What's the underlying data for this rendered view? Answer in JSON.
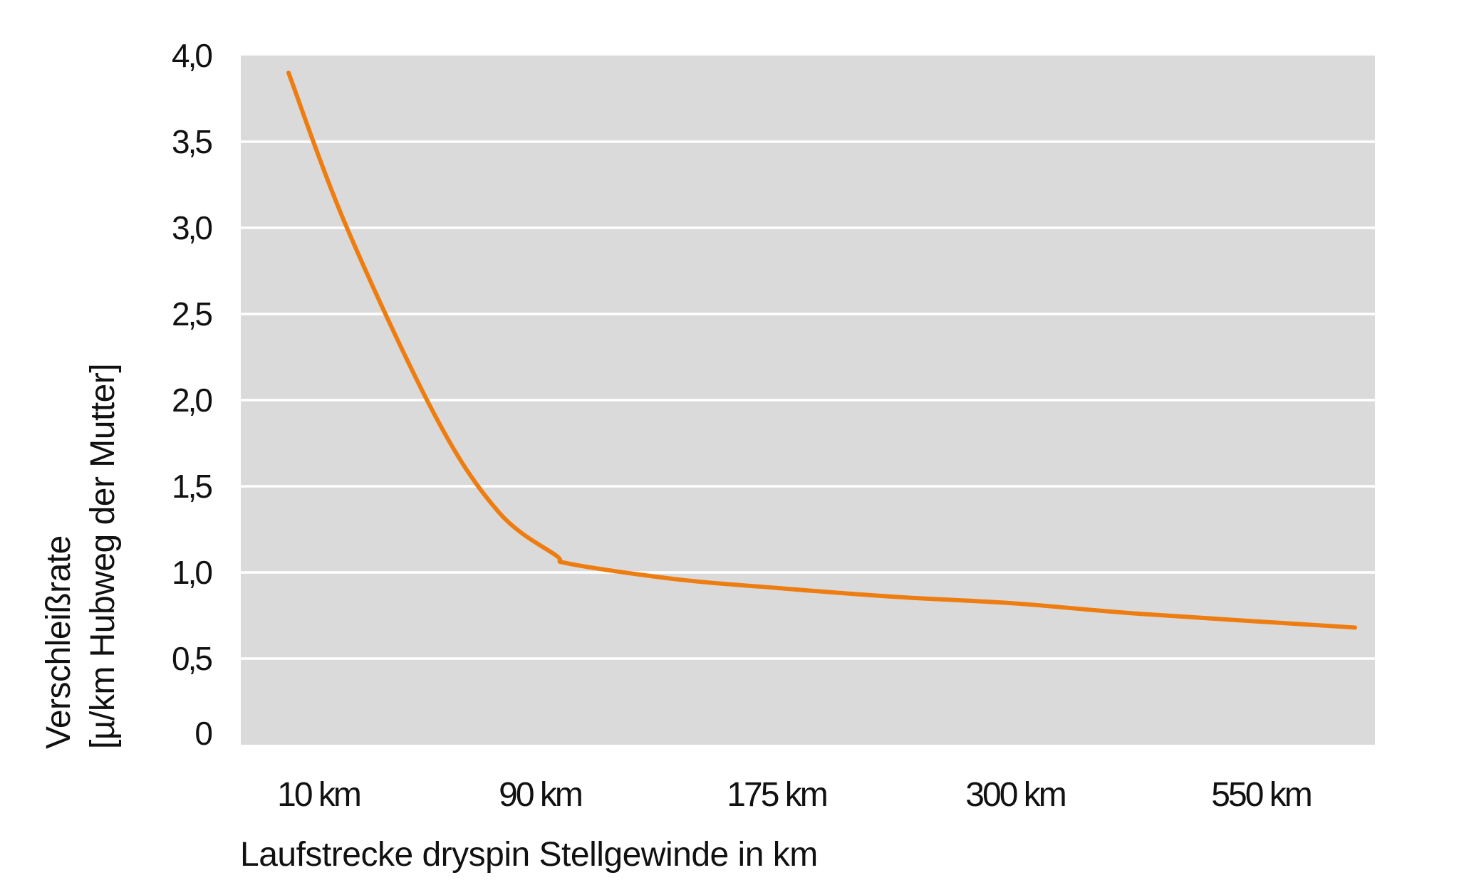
{
  "chart_data": {
    "type": "line",
    "title": "",
    "xlabel": "Laufstrecke dryspin Stellgewinde in km",
    "ylabel_line1": "Verschleißrate",
    "ylabel_line2": "[µ/km Hubweg der Mutter]",
    "categories": [
      "10 km",
      "90 km",
      "175 km",
      "300 km",
      "550 km"
    ],
    "y_ticks": [
      "0",
      "0,5",
      "1,0",
      "1,5",
      "2,0",
      "2,5",
      "3,0",
      "3,5",
      "4,0"
    ],
    "ylim": [
      0,
      4
    ],
    "grid": true,
    "series": [
      {
        "x": [
          "10 km",
          "90 km",
          "175 km",
          "300 km",
          "550 km"
        ],
        "values": [
          3.7,
          1.05,
          0.9,
          0.8,
          0.7
        ]
      }
    ],
    "colors": {
      "line": "#EE7D11",
      "plot_background": "#DADADA",
      "grid": "#FFFFFF",
      "text": "#111111"
    }
  }
}
